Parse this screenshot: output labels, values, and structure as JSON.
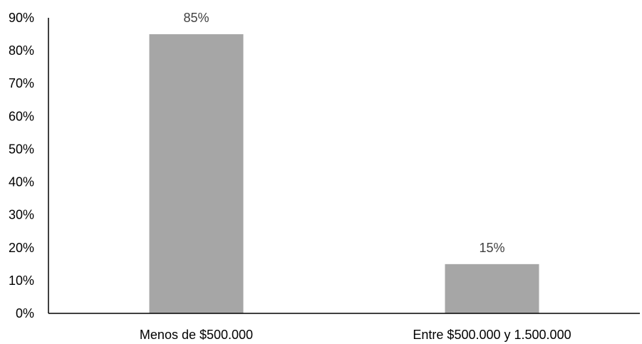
{
  "chart_data": {
    "type": "bar",
    "categories": [
      "Menos de $500.000",
      "Entre $500.000 y 1.500.000"
    ],
    "values": [
      85,
      15
    ],
    "data_labels": [
      "85%",
      "15%"
    ],
    "y_ticks": [
      "0%",
      "10%",
      "20%",
      "30%",
      "40%",
      "50%",
      "60%",
      "70%",
      "80%",
      "90%"
    ],
    "ylim": [
      0,
      90
    ],
    "title": "",
    "xlabel": "",
    "ylabel": "",
    "grid": false,
    "legend": "none",
    "bar_color": "#a6a6a6"
  }
}
